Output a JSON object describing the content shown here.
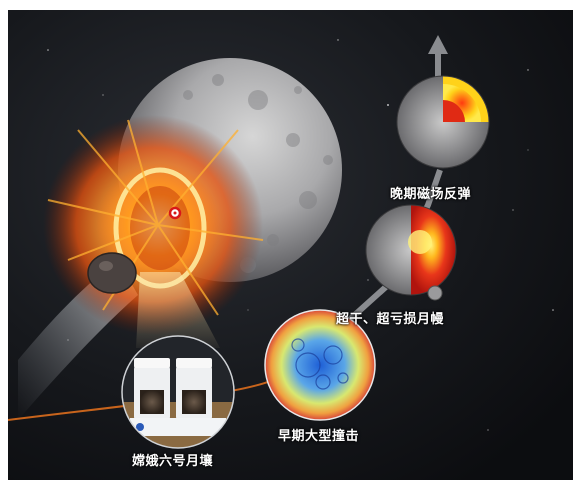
{
  "captions": {
    "late_magnetic": "晚期磁场反弹",
    "mantle_loss": "超干、超亏损月幔",
    "early_impact": "早期大型撞击",
    "soil_sample": "嫦娥六号月壤"
  },
  "colors": {
    "space": "#14161b",
    "moon": "#a8a8aa",
    "fire": "#ff8a1c",
    "core_hot": "#ffd21a",
    "mantle": "#d8261a",
    "arrow": "#8a8c90",
    "label_text": "#ffffff"
  },
  "icons": {
    "impact_marker": "red-ring-marker",
    "arrow": "up-arrow"
  }
}
